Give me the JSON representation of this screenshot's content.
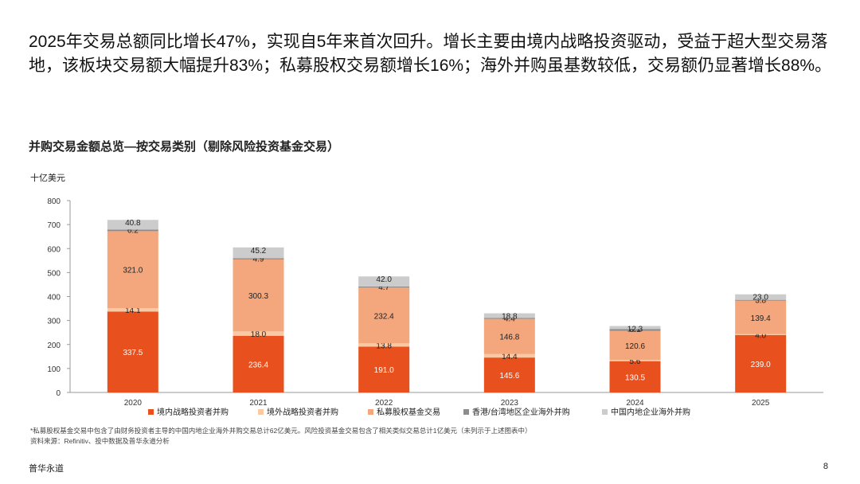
{
  "headline": "2025年交易总额同比增长47%，实现自5年来首次回升。增长主要由境内战略投资驱动，受益于超大型交易落地，该板块交易额大幅提升83%；私募股权交易额增长16%；海外并购虽基数较低，交易额仍显著增长88%。",
  "colors": {
    "domestic_strategic": "#e8511e",
    "foreign_strategic": "#f9c9a4",
    "pe": "#f4a77c",
    "hk_tw": "#8c8c8c",
    "mainland_overseas": "#cccccc"
  },
  "chart_data": {
    "type": "bar",
    "stacked": true,
    "title": "并购交易金额总览—按交易类别（剔除风险投资基金交易）",
    "ylabel": "十亿美元",
    "categories": [
      "2020",
      "2021",
      "2022",
      "2023",
      "2024",
      "2025"
    ],
    "ylim": [
      0,
      800
    ],
    "yticks": [
      "0",
      "100",
      "200",
      "300",
      "400",
      "500",
      "600",
      "700",
      "800"
    ],
    "grid": false,
    "legend_position": "bottom",
    "series": [
      {
        "name": "境内战略投资者并购",
        "color_key": "domestic_strategic",
        "values": [
          337.5,
          236.4,
          191.0,
          145.6,
          130.5,
          239.0
        ],
        "labels": [
          "337.5",
          "236.4",
          "191.0",
          "145.6",
          "130.5",
          "239.0"
        ]
      },
      {
        "name": "境外战略投资者并购",
        "color_key": "foreign_strategic",
        "values": [
          14.1,
          18.0,
          13.8,
          14.4,
          5.6,
          4.0
        ],
        "labels": [
          "14.1",
          "18.0",
          "13.8",
          "14.4",
          "5.6",
          "4.0"
        ]
      },
      {
        "name": "私募股权基金交易",
        "color_key": "pe",
        "values": [
          321.0,
          300.3,
          232.4,
          146.8,
          120.6,
          139.4
        ],
        "labels": [
          "321.0",
          "300.3",
          "232.4",
          "146.8",
          "120.6",
          "139.4"
        ]
      },
      {
        "name": "香港/台湾地区企业海外并购",
        "color_key": "hk_tw",
        "values": [
          6.2,
          4.9,
          4.7,
          4.4,
          8.1,
          3.8
        ],
        "labels": [
          "6.2",
          "4.9",
          "4.7",
          "4.4",
          "8.1",
          "3.8"
        ]
      },
      {
        "name": "中国内地企业海外并购",
        "color_key": "mainland_overseas",
        "values": [
          40.8,
          45.2,
          42.0,
          18.8,
          12.3,
          23.0
        ],
        "labels": [
          "40.8",
          "45.2",
          "42.0",
          "18.8",
          "12.3",
          "23.0"
        ]
      }
    ]
  },
  "footnote": {
    "line1": "*私募股权基金交易中包含了由财务投资者主导的中国内地企业海外并购交易总计62亿美元。风险投资基金交易包含了相关类似交易总计1亿美元（未列示于上述图表中）",
    "line2": "资料来源：Refinitiv、投中数据及普华永道分析"
  },
  "brand": "普华永道",
  "page_number": "8"
}
